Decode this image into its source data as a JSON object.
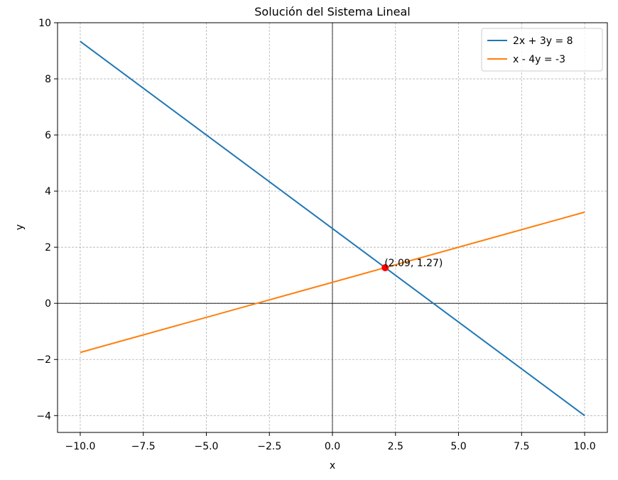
{
  "chart_data": {
    "type": "line",
    "title": "Solución del Sistema Lineal",
    "xlabel": "x",
    "ylabel": "y",
    "xlim": [
      -10.9,
      10.9
    ],
    "ylim": [
      -4.6,
      10
    ],
    "xticks": [
      -10.0,
      -7.5,
      -5.0,
      -2.5,
      0.0,
      2.5,
      5.0,
      7.5,
      10.0
    ],
    "xtick_labels": [
      "−10.0",
      "−7.5",
      "−5.0",
      "−2.5",
      "0.0",
      "2.5",
      "5.0",
      "7.5",
      "10.0"
    ],
    "yticks": [
      -4,
      -2,
      0,
      2,
      4,
      6,
      8,
      10
    ],
    "ytick_labels": [
      "−4",
      "−2",
      "0",
      "2",
      "4",
      "6",
      "8",
      "10"
    ],
    "grid": true,
    "legend_position": "top-right",
    "series": [
      {
        "name": "2x + 3y = 8",
        "color": "#1f77b4",
        "x": [
          -10,
          10
        ],
        "y": [
          9.333,
          -4.0
        ]
      },
      {
        "name": "x - 4y = -3",
        "color": "#ff7f0e",
        "x": [
          -10,
          10
        ],
        "y": [
          -1.75,
          3.25
        ]
      }
    ],
    "point": {
      "x": 2.09,
      "y": 1.27,
      "color": "#ff0000",
      "label": "(2.09, 1.27)"
    }
  }
}
